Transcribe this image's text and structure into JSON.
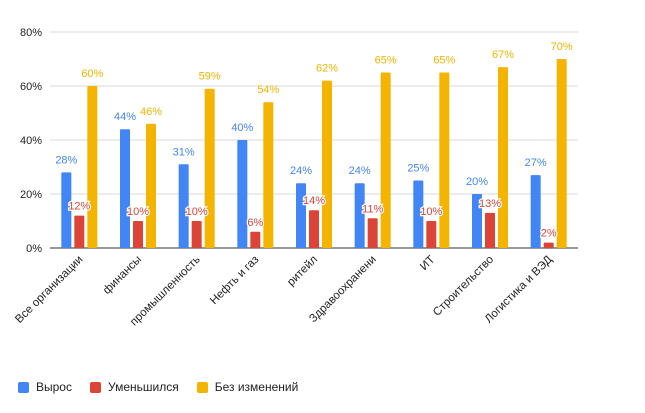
{
  "chart_data": {
    "type": "bar",
    "categories": [
      "Все организации",
      "финансы",
      "промышленность",
      "Нефть и газ",
      "ритейл",
      "Здравоохранени",
      "ИТ",
      "Строительство",
      "Логистика и ВЭД"
    ],
    "series": [
      {
        "name": "Вырос",
        "color": "#4285f4",
        "values": [
          28,
          44,
          31,
          40,
          24,
          24,
          25,
          20,
          27
        ],
        "labels": [
          "28%",
          "44%",
          "31%",
          "40%",
          "24%",
          "24%",
          "25%",
          "20%",
          "27%"
        ]
      },
      {
        "name": "Уменьшился",
        "color": "#db4437",
        "values": [
          12,
          10,
          10,
          6,
          14,
          11,
          10,
          13,
          2
        ],
        "labels": [
          "12%",
          "10%",
          "10%",
          "6%",
          "14%",
          "11%",
          "10%",
          "13%",
          "2%"
        ]
      },
      {
        "name": "Без изменений",
        "color": "#f4b400",
        "values": [
          60,
          46,
          59,
          54,
          62,
          65,
          65,
          67,
          70
        ],
        "labels": [
          "60%",
          "46%",
          "59%",
          "54%",
          "62%",
          "65%",
          "65%",
          "67%",
          "70%"
        ]
      }
    ],
    "yticks": [
      "0%",
      "20%",
      "40%",
      "60%",
      "80%"
    ],
    "ylim": [
      0,
      80
    ],
    "grid": true,
    "legend_position": "bottom-left"
  }
}
